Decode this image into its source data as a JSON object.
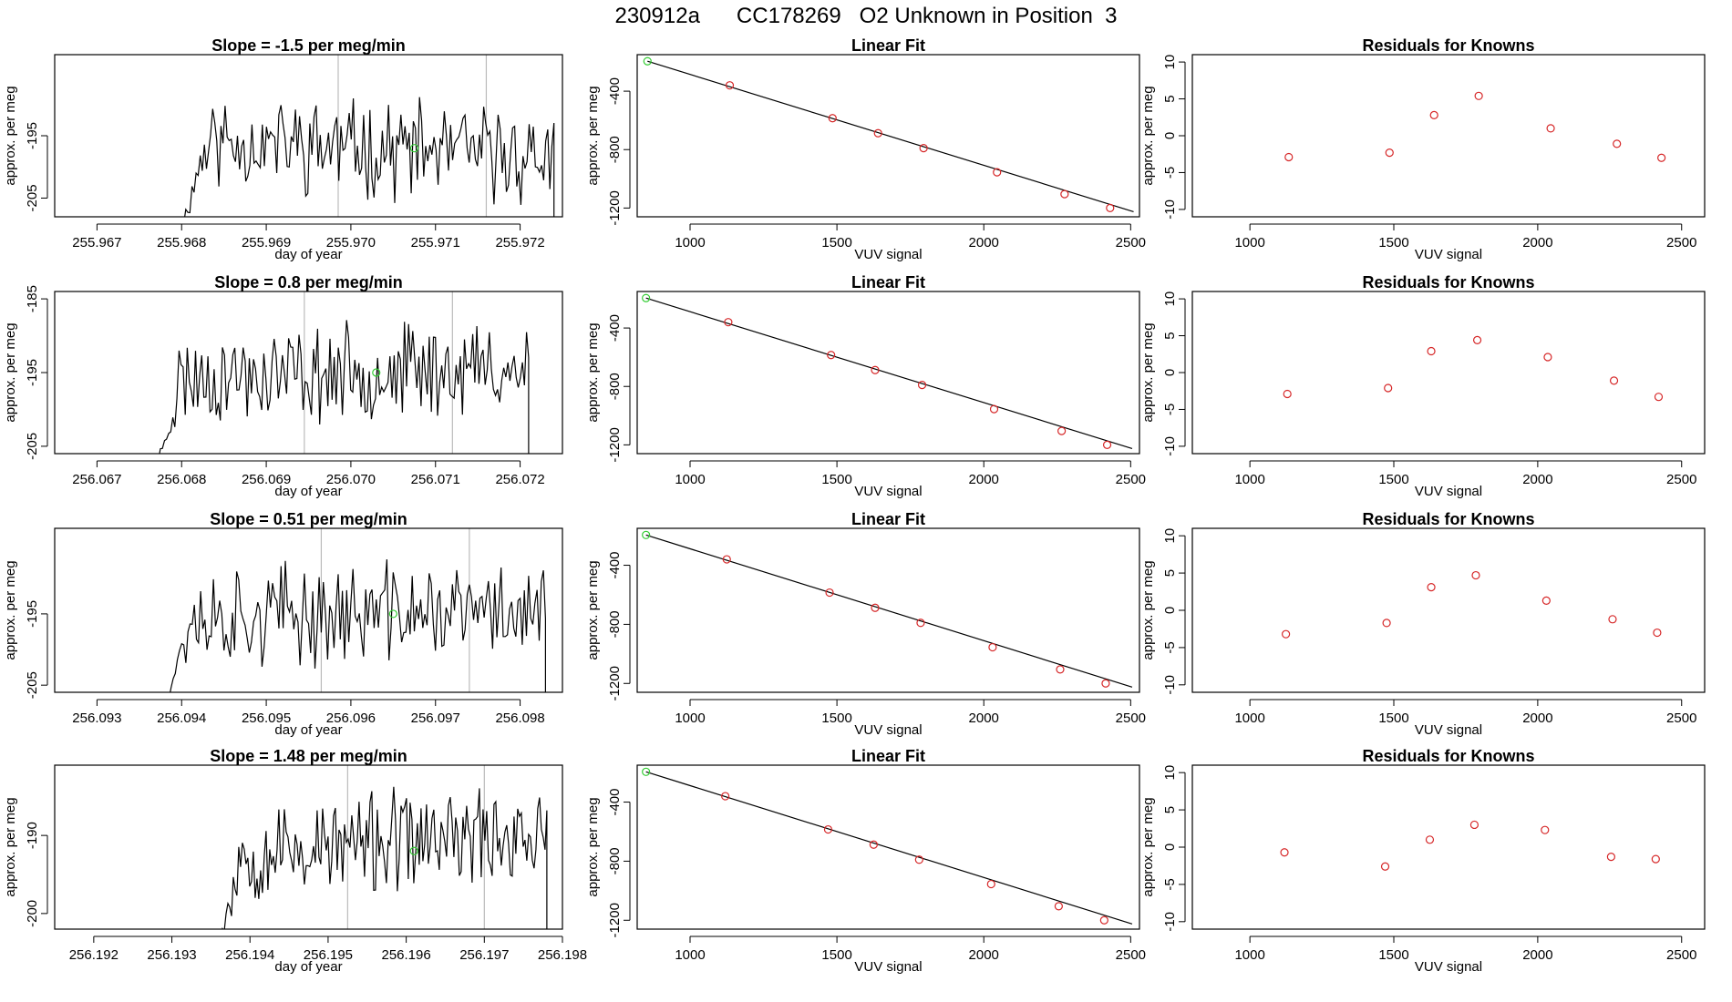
{
  "page": {
    "title": "230912a      CC178269   O2 Unknown in Position  3"
  },
  "chart_data": [
    {
      "type": "line",
      "title": "Slope =  -1.5  per meg/min",
      "xlabel": "day of year",
      "ylabel": "approx. per meg",
      "xlim": [
        255.9665,
        255.9725
      ],
      "ylim": [
        -208,
        -182
      ],
      "xticks": [
        "255.967",
        "255.968",
        "255.969",
        "255.970",
        "255.971",
        "255.972"
      ],
      "yticks": [
        "-205",
        "-195"
      ],
      "trace": {
        "start": 255.968,
        "end": 255.9724,
        "baseline": -197,
        "amplitude": 6,
        "trend": -1.5,
        "seed": 11
      },
      "vlines": [
        255.96985,
        255.9716
      ],
      "marker": {
        "x": 255.97075,
        "y": -197
      }
    },
    {
      "type": "line",
      "title": "Slope =  0.8  per meg/min",
      "xlabel": "day of year",
      "ylabel": "approx. per meg",
      "xlim": [
        256.0665,
        256.0725
      ],
      "ylim": [
        -206,
        -184
      ],
      "xticks": [
        "256.067",
        "256.068",
        "256.069",
        "256.070",
        "256.071",
        "256.072"
      ],
      "yticks": [
        "-205",
        "-195",
        "-185"
      ],
      "trace": {
        "start": 256.0677,
        "end": 256.0721,
        "baseline": -195,
        "amplitude": 5,
        "trend": 0.8,
        "seed": 23
      },
      "vlines": [
        256.06945,
        256.0712
      ],
      "marker": {
        "x": 256.0703,
        "y": -195
      }
    },
    {
      "type": "line",
      "title": "Slope =  0.51  per meg/min",
      "xlabel": "day of year",
      "ylabel": "approx. per meg",
      "xlim": [
        256.0925,
        256.0985
      ],
      "ylim": [
        -206,
        -183
      ],
      "xticks": [
        "256.093",
        "256.094",
        "256.095",
        "256.096",
        "256.097",
        "256.098"
      ],
      "yticks": [
        "-205",
        "-195"
      ],
      "trace": {
        "start": 256.0938,
        "end": 256.0983,
        "baseline": -195,
        "amplitude": 5.5,
        "trend": 0.51,
        "seed": 37
      },
      "vlines": [
        256.09565,
        256.0974
      ],
      "marker": {
        "x": 256.0965,
        "y": -195
      }
    },
    {
      "type": "line",
      "title": "Slope =  1.48  per meg/min",
      "xlabel": "day of year",
      "ylabel": "approx. per meg",
      "xlim": [
        256.1915,
        256.198
      ],
      "ylim": [
        -202,
        -181
      ],
      "xticks": [
        "256.192",
        "256.193",
        "256.194",
        "256.195",
        "256.196",
        "256.197",
        "256.198"
      ],
      "yticks": [
        "-200",
        "-190"
      ],
      "trace": {
        "start": 256.1936,
        "end": 256.1978,
        "baseline": -191,
        "amplitude": 5,
        "trend": 1.48,
        "seed": 53
      },
      "vlines": [
        256.19525,
        256.197
      ],
      "marker": {
        "x": 256.1961,
        "y": -192
      }
    },
    {
      "type": "scatter",
      "title": "Linear Fit",
      "xlabel": "VUV signal",
      "ylabel": "approx. per meg",
      "xlim": [
        820,
        2530
      ],
      "ylim": [
        -1260,
        -150
      ],
      "xticks": [
        "1000",
        "1500",
        "2000",
        "2500"
      ],
      "yticks": [
        "-1200",
        "-800",
        "-400"
      ],
      "knowns": [
        [
          1135,
          -360
        ],
        [
          1485,
          -585
        ],
        [
          1640,
          -688
        ],
        [
          1795,
          -790
        ],
        [
          2045,
          -955
        ],
        [
          2275,
          -1105
        ],
        [
          2430,
          -1200
        ]
      ],
      "unknown": [
        855,
        -195
      ],
      "fit_line": [
        [
          855,
          -195
        ],
        [
          2510,
          -1225
        ]
      ]
    },
    {
      "type": "scatter",
      "title": "Linear Fit",
      "xlabel": "VUV signal",
      "ylabel": "approx. per meg",
      "xlim": [
        820,
        2530
      ],
      "ylim": [
        -1260,
        -150
      ],
      "xticks": [
        "1000",
        "1500",
        "2000",
        "2500"
      ],
      "yticks": [
        "-1200",
        "-800",
        "-400"
      ],
      "knowns": [
        [
          1130,
          -360
        ],
        [
          1480,
          -585
        ],
        [
          1630,
          -688
        ],
        [
          1790,
          -790
        ],
        [
          2035,
          -955
        ],
        [
          2265,
          -1105
        ],
        [
          2420,
          -1200
        ]
      ],
      "unknown": [
        850,
        -195
      ],
      "fit_line": [
        [
          850,
          -195
        ],
        [
          2505,
          -1225
        ]
      ]
    },
    {
      "type": "scatter",
      "title": "Linear Fit",
      "xlabel": "VUV signal",
      "ylabel": "approx. per meg",
      "xlim": [
        820,
        2530
      ],
      "ylim": [
        -1260,
        -150
      ],
      "xticks": [
        "1000",
        "1500",
        "2000",
        "2500"
      ],
      "yticks": [
        "-1200",
        "-800",
        "-400"
      ],
      "knowns": [
        [
          1125,
          -360
        ],
        [
          1475,
          -585
        ],
        [
          1630,
          -688
        ],
        [
          1785,
          -790
        ],
        [
          2030,
          -955
        ],
        [
          2260,
          -1105
        ],
        [
          2415,
          -1200
        ]
      ],
      "unknown": [
        850,
        -195
      ],
      "fit_line": [
        [
          850,
          -195
        ],
        [
          2505,
          -1225
        ]
      ]
    },
    {
      "type": "scatter",
      "title": "Linear Fit",
      "xlabel": "VUV signal",
      "ylabel": "approx. per meg",
      "xlim": [
        820,
        2530
      ],
      "ylim": [
        -1260,
        -150
      ],
      "xticks": [
        "1000",
        "1500",
        "2000",
        "2500"
      ],
      "yticks": [
        "-1200",
        "-800",
        "-400"
      ],
      "knowns": [
        [
          1120,
          -360
        ],
        [
          1470,
          -585
        ],
        [
          1625,
          -688
        ],
        [
          1780,
          -790
        ],
        [
          2025,
          -955
        ],
        [
          2255,
          -1105
        ],
        [
          2410,
          -1200
        ]
      ],
      "unknown": [
        850,
        -195
      ],
      "fit_line": [
        [
          850,
          -195
        ],
        [
          2505,
          -1225
        ]
      ]
    },
    {
      "type": "scatter",
      "title": "Residuals for Knowns",
      "xlabel": "VUV signal",
      "ylabel": "approx. per meg",
      "xlim": [
        800,
        2580
      ],
      "ylim": [
        -11,
        11
      ],
      "xticks": [
        "1000",
        "1500",
        "2000",
        "2500"
      ],
      "yticks": [
        "-10",
        "-5",
        "0",
        "5",
        "10"
      ],
      "points": [
        [
          1135,
          -2.9
        ],
        [
          1485,
          -2.3
        ],
        [
          1640,
          2.8
        ],
        [
          1795,
          5.4
        ],
        [
          2045,
          1.0
        ],
        [
          2275,
          -1.1
        ],
        [
          2430,
          -3.0
        ]
      ]
    },
    {
      "type": "scatter",
      "title": "Residuals for Knowns",
      "xlabel": "VUV signal",
      "ylabel": "approx. per meg",
      "xlim": [
        800,
        2580
      ],
      "ylim": [
        -11,
        11
      ],
      "xticks": [
        "1000",
        "1500",
        "2000",
        "2500"
      ],
      "yticks": [
        "-10",
        "-5",
        "0",
        "5",
        "10"
      ],
      "points": [
        [
          1130,
          -2.9
        ],
        [
          1480,
          -2.1
        ],
        [
          1630,
          2.9
        ],
        [
          1790,
          4.4
        ],
        [
          2035,
          2.1
        ],
        [
          2265,
          -1.1
        ],
        [
          2420,
          -3.3
        ]
      ]
    },
    {
      "type": "scatter",
      "title": "Residuals for Knowns",
      "xlabel": "VUV signal",
      "ylabel": "approx. per meg",
      "xlim": [
        800,
        2580
      ],
      "ylim": [
        -11,
        11
      ],
      "xticks": [
        "1000",
        "1500",
        "2000",
        "2500"
      ],
      "yticks": [
        "-10",
        "-5",
        "0",
        "5",
        "10"
      ],
      "points": [
        [
          1125,
          -3.2
        ],
        [
          1475,
          -1.7
        ],
        [
          1630,
          3.1
        ],
        [
          1785,
          4.7
        ],
        [
          2030,
          1.3
        ],
        [
          2260,
          -1.2
        ],
        [
          2415,
          -3.0
        ]
      ]
    },
    {
      "type": "scatter",
      "title": "Residuals for Knowns",
      "xlabel": "VUV signal",
      "ylabel": "approx. per meg",
      "xlim": [
        800,
        2580
      ],
      "ylim": [
        -11,
        11
      ],
      "xticks": [
        "1000",
        "1500",
        "2000",
        "2500"
      ],
      "yticks": [
        "-10",
        "-5",
        "0",
        "5",
        "10"
      ],
      "points": [
        [
          1120,
          -0.7
        ],
        [
          1470,
          -2.6
        ],
        [
          1625,
          1.0
        ],
        [
          1780,
          3.0
        ],
        [
          2025,
          2.3
        ],
        [
          2255,
          -1.3
        ],
        [
          2410,
          -1.6
        ]
      ]
    }
  ],
  "colors": {
    "known_point": "#d62728",
    "unknown_point": "#33cc33",
    "vline": "#bbbbbb",
    "series": "#000000"
  }
}
